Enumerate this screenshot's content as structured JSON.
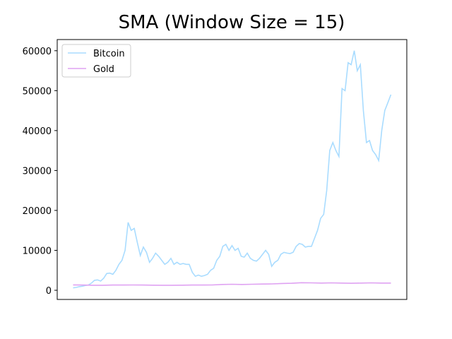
{
  "chart_data": {
    "type": "line",
    "title": "SMA (Window Size = 15)",
    "ylim": [
      -2300,
      62800
    ],
    "yticks": [
      0,
      10000,
      20000,
      30000,
      40000,
      50000,
      60000
    ],
    "legend": "upper left",
    "series": [
      {
        "name": "Bitcoin",
        "color": "#a9dcff",
        "values": [
          600,
          700,
          900,
          1000,
          1200,
          1300,
          1800,
          2500,
          2600,
          2300,
          3000,
          4200,
          4300,
          4000,
          5000,
          6500,
          7500,
          10000,
          17000,
          15000,
          15500,
          12000,
          8700,
          10800,
          9500,
          7000,
          8000,
          9300,
          8500,
          7500,
          6500,
          7000,
          8000,
          6500,
          7000,
          6500,
          6700,
          6500,
          6500,
          4500,
          3500,
          3800,
          3500,
          3700,
          4000,
          5000,
          5500,
          7500,
          8500,
          11000,
          11500,
          10000,
          11200,
          10000,
          10500,
          8500,
          8300,
          9300,
          8000,
          7500,
          7300,
          8000,
          9000,
          10000,
          9000,
          6000,
          7000,
          7500,
          9000,
          9500,
          9300,
          9200,
          9500,
          11000,
          11700,
          11500,
          10800,
          11000,
          11000,
          13000,
          15000,
          18000,
          19000,
          25000,
          35000,
          37000,
          35000,
          33500,
          50500,
          50000,
          57000,
          56500,
          60000,
          55000,
          56500,
          45000,
          37000,
          37500,
          35000,
          34000,
          32500,
          40000,
          45000,
          47000,
          49000
        ]
      },
      {
        "name": "Gold",
        "color": "#dfa2f2",
        "values": [
          1350,
          1300,
          1250,
          1250,
          1300,
          1300,
          1320,
          1300,
          1280,
          1250,
          1250,
          1270,
          1300,
          1300,
          1320,
          1450,
          1500,
          1450,
          1500,
          1550,
          1600,
          1700,
          1750,
          1900,
          1850,
          1800,
          1850,
          1800,
          1750,
          1800,
          1850,
          1800,
          1800
        ]
      }
    ]
  }
}
